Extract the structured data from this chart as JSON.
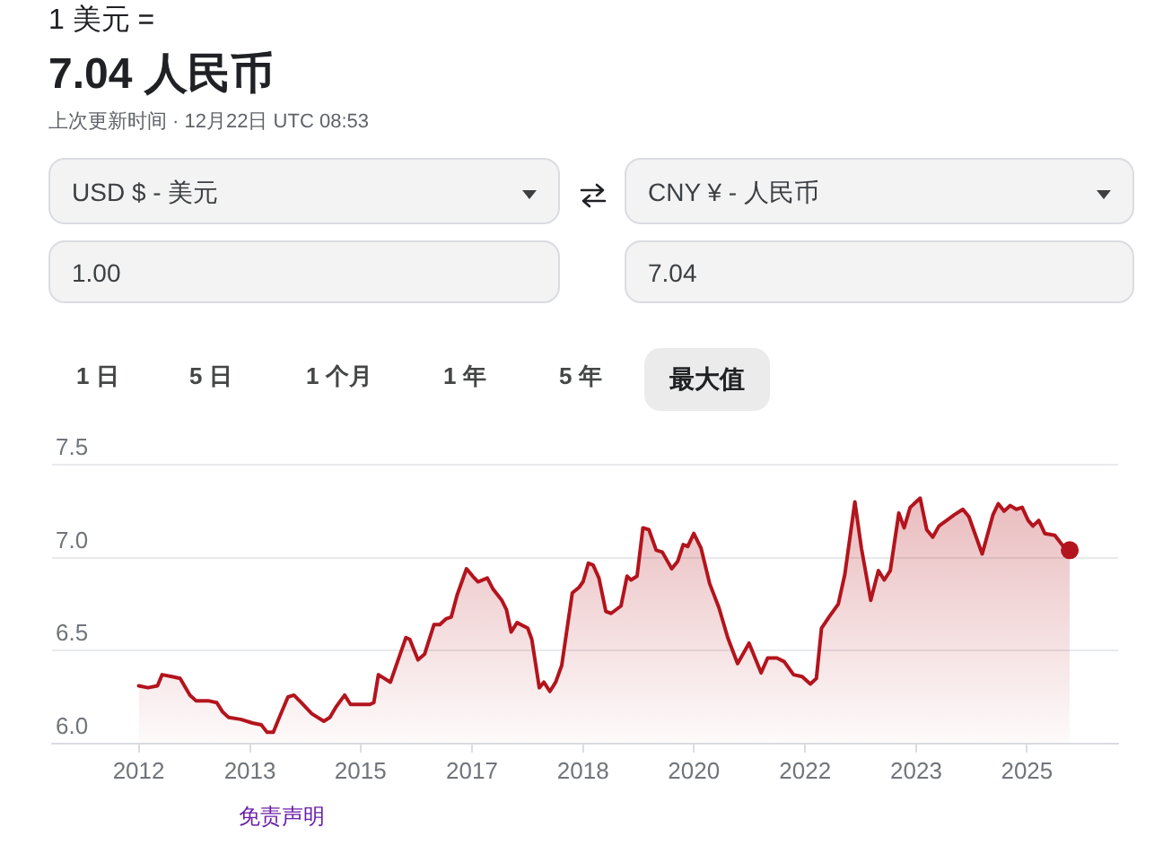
{
  "chart_data": {
    "type": "area",
    "title": "7.04 人民币",
    "subtitle": "上次更新时间 · 12月22日 UTC 08:53",
    "annotations": [
      "1 美元 =",
      "USD $ - 美元",
      "CNY ¥ - 人民币",
      "1.00",
      "7.04",
      "1 日",
      "5 日",
      "1 个月",
      "1 年",
      "5 年",
      "最大值",
      "免责声明"
    ],
    "x": [
      "2012-01-01",
      "2012-02-21",
      "2012-04-13",
      "2012-05-08",
      "2012-07-02",
      "2012-08-15",
      "2012-10-08",
      "2012-11-10",
      "2013-01-15",
      "2013-03-04",
      "2013-04-05",
      "2013-05-08",
      "2013-07-13",
      "2013-09-16",
      "2013-11-03",
      "2013-12-05",
      "2014-01-08",
      "2014-02-10",
      "2014-03-29",
      "2014-05-01",
      "2014-06-10",
      "2014-08-07",
      "2014-10-12",
      "2014-11-14",
      "2014-12-20",
      "2015-02-03",
      "2015-03-07",
      "2015-04-23",
      "2015-06-21",
      "2015-07-13",
      "2015-08-07",
      "2015-10-12",
      "2016-01-05",
      "2016-01-26",
      "2016-03-11",
      "2016-04-16",
      "2016-06-07",
      "2016-07-09",
      "2016-08-11",
      "2016-09-09",
      "2016-10-12",
      "2016-12-02",
      "2017-01-05",
      "2017-02-03",
      "2017-03-26",
      "2017-04-27",
      "2017-06-14",
      "2017-07-09",
      "2017-08-04",
      "2017-09-05",
      "2017-11-03",
      "2017-11-25",
      "2018-01-05",
      "2018-01-30",
      "2018-03-04",
      "2018-04-05",
      "2018-05-08",
      "2018-07-05",
      "2018-08-11",
      "2018-09-02",
      "2018-10-01",
      "2018-10-27",
      "2018-11-28",
      "2019-01-05",
      "2019-02-03",
      "2019-03-29",
      "2019-05-01",
      "2019-05-23",
      "2019-06-25",
      "2019-07-27",
      "2019-08-29",
      "2019-10-08",
      "2019-11-10",
      "2020-01-01",
      "2020-02-03",
      "2020-03-04",
      "2020-03-29",
      "2020-05-01",
      "2020-06-10",
      "2020-07-27",
      "2020-09-16",
      "2020-11-03",
      "2020-12-27",
      "2021-02-28",
      "2021-05-05",
      "2021-06-10",
      "2021-07-31",
      "2021-09-09",
      "2021-10-30",
      "2021-12-16",
      "2022-01-30",
      "2022-03-04",
      "2022-04-01",
      "2022-05-12",
      "2022-07-02",
      "2022-08-07",
      "2022-10-01",
      "2022-11-06",
      "2022-12-27",
      "2023-02-07",
      "2023-03-11",
      "2023-04-13",
      "2023-05-30",
      "2023-06-28",
      "2023-07-31",
      "2023-09-24",
      "2023-10-30",
      "2023-12-02",
      "2024-01-05",
      "2024-03-29",
      "2024-05-15",
      "2024-06-17",
      "2024-08-29",
      "2024-10-27",
      "2024-11-25",
      "2024-12-27",
      "2025-01-30",
      "2025-03-04",
      "2025-04-05",
      "2025-05-08",
      "2025-06-03",
      "2025-07-05",
      "2025-08-07",
      "2025-10-01",
      "2025-11-25",
      "2025-12-22"
    ],
    "series": [
      {
        "color": "#b3141d",
        "values": [
          6.31,
          6.3,
          6.31,
          6.37,
          6.36,
          6.35,
          6.26,
          6.23,
          6.23,
          6.22,
          6.17,
          6.14,
          6.13,
          6.11,
          6.1,
          6.06,
          6.06,
          6.14,
          6.25,
          6.26,
          6.22,
          6.16,
          6.12,
          6.14,
          6.2,
          6.26,
          6.21,
          6.21,
          6.21,
          6.22,
          6.37,
          6.33,
          6.57,
          6.56,
          6.45,
          6.48,
          6.64,
          6.64,
          6.67,
          6.68,
          6.8,
          6.94,
          6.9,
          6.87,
          6.89,
          6.83,
          6.77,
          6.72,
          6.6,
          6.65,
          6.62,
          6.56,
          6.3,
          6.33,
          6.28,
          6.33,
          6.42,
          6.81,
          6.84,
          6.87,
          6.97,
          6.96,
          6.89,
          6.71,
          6.7,
          6.74,
          6.9,
          6.88,
          6.9,
          7.16,
          7.15,
          7.04,
          7.03,
          6.94,
          6.98,
          7.07,
          7.06,
          7.13,
          7.05,
          6.86,
          6.73,
          6.57,
          6.43,
          6.54,
          6.38,
          6.46,
          6.46,
          6.44,
          6.37,
          6.36,
          6.32,
          6.35,
          6.62,
          6.68,
          6.75,
          6.91,
          7.3,
          7.05,
          6.77,
          6.93,
          6.88,
          6.93,
          7.24,
          7.16,
          7.27,
          7.32,
          7.15,
          7.11,
          7.17,
          7.23,
          7.26,
          7.22,
          7.02,
          7.23,
          7.29,
          7.25,
          7.28,
          7.26,
          7.27,
          7.2,
          7.17,
          7.2,
          7.13,
          7.12,
          7.05,
          7.04
        ]
      },
      {
        "type": "scatter",
        "color": "#b3141d",
        "x": [
          "2025-12-22"
        ],
        "values": [
          7.04
        ]
      }
    ],
    "xlim": [
      "2010-09-13",
      "2026-09-13"
    ],
    "xticks": [
      {
        "value": "2012-01-01",
        "label": "2012"
      },
      {
        "value": "2013-09-02",
        "label": "2013"
      },
      {
        "value": "2015-05-01",
        "label": "2015"
      },
      {
        "value": "2017-01-01",
        "label": "2017"
      },
      {
        "value": "2018-09-02",
        "label": "2018"
      },
      {
        "value": "2020-05-01",
        "label": "2020"
      },
      {
        "value": "2022-01-01",
        "label": "2022"
      },
      {
        "value": "2023-09-02",
        "label": "2023"
      },
      {
        "value": "2025-05-01",
        "label": "2025"
      }
    ],
    "ylim": [
      6,
      7.5
    ],
    "yticks": [
      {
        "value": 6,
        "label": "6.0"
      },
      6.5,
      {
        "value": 7,
        "label": "7.0"
      },
      7.5
    ],
    "grid": "y"
  }
}
